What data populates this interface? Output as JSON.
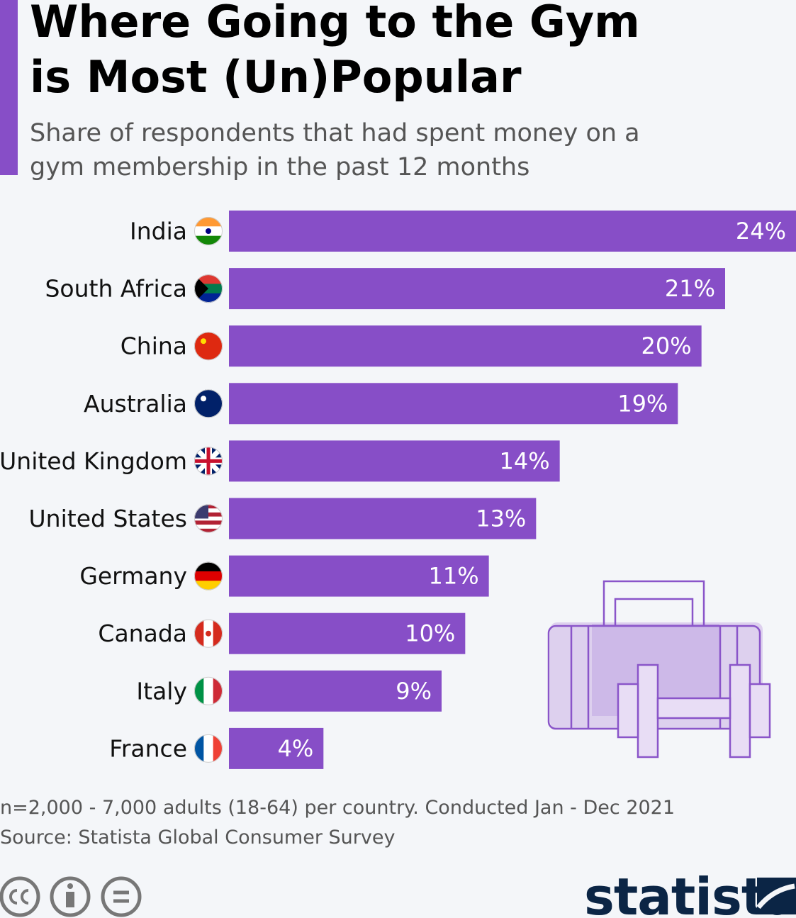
{
  "chart_data": {
    "type": "bar",
    "title": "Where Going to the Gym is Most (Un)Popular",
    "subtitle": "Share of respondents that had spent money on a gym membership in the past 12 months",
    "categories": [
      "India",
      "South Africa",
      "China",
      "Australia",
      "United Kingdom",
      "United States",
      "Germany",
      "Canada",
      "Italy",
      "France"
    ],
    "values": [
      24,
      21,
      20,
      19,
      14,
      13,
      11,
      10,
      9,
      4
    ],
    "value_labels": [
      "24%",
      "21%",
      "20%",
      "19%",
      "14%",
      "13%",
      "11%",
      "10%",
      "9%",
      "4%"
    ],
    "color": "#874ec7",
    "note": "n=2,000 - 7,000 adults (18-64) per country. Conducted Jan - Dec 2021",
    "source": "Source: Statista Global Consumer Survey",
    "brand": "statista"
  }
}
